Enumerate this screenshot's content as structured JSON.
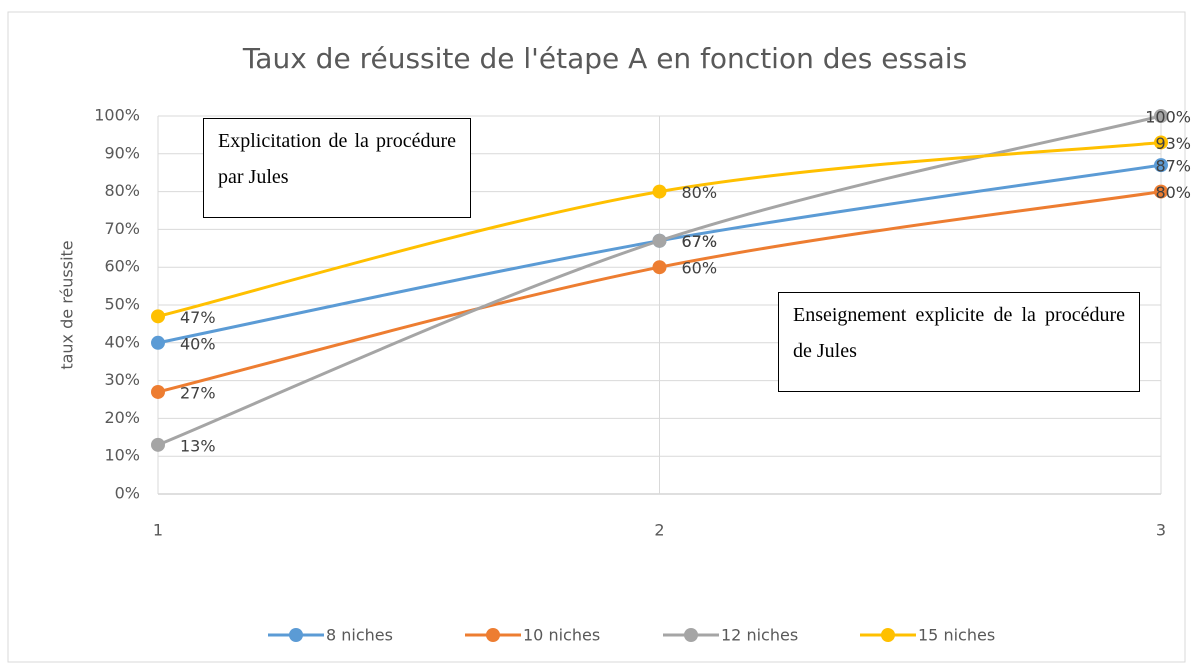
{
  "chart_data": {
    "type": "line",
    "title": "Taux de réussite de l'étape A en fonction des essais",
    "y_label": "taux de réussite",
    "x": [
      1,
      2,
      3
    ],
    "xlim": [
      1,
      3
    ],
    "xticks": [
      1,
      2,
      3
    ],
    "ylim": [
      0,
      100
    ],
    "yticks": [
      {
        "value": 0,
        "label": "0%"
      },
      {
        "value": 10,
        "label": "10%"
      },
      {
        "value": 20,
        "label": "20%"
      },
      {
        "value": 30,
        "label": "30%"
      },
      {
        "value": 40,
        "label": "40%"
      },
      {
        "value": 50,
        "label": "50%"
      },
      {
        "value": 60,
        "label": "60%"
      },
      {
        "value": 70,
        "label": "70%"
      },
      {
        "value": 80,
        "label": "80%"
      },
      {
        "value": 90,
        "label": "90%"
      },
      {
        "value": 100,
        "label": "100%"
      }
    ],
    "grid": true,
    "smooth": true,
    "legend": "bottom",
    "series": [
      {
        "name": "8 niches",
        "color": "#5b9bd5",
        "values": [
          40,
          67,
          87
        ],
        "value_labels": [
          "40%",
          "67%",
          "87%"
        ]
      },
      {
        "name": "10 niches",
        "color": "#ed7d31",
        "values": [
          27,
          60,
          80
        ],
        "value_labels": [
          "27%",
          "60%",
          "80%"
        ]
      },
      {
        "name": "12 niches",
        "color": "#a5a5a5",
        "values": [
          13,
          67,
          100
        ],
        "value_labels": [
          "13%",
          "67%",
          "100%"
        ]
      },
      {
        "name": "15 niches",
        "color": "#ffc000",
        "values": [
          47,
          80,
          93
        ],
        "value_labels": [
          "47%",
          "80%",
          "93%"
        ]
      }
    ],
    "annotations": [
      "Explicitation de la procédure par Jules",
      "Enseignement explicite de la procédure de Jules"
    ]
  }
}
